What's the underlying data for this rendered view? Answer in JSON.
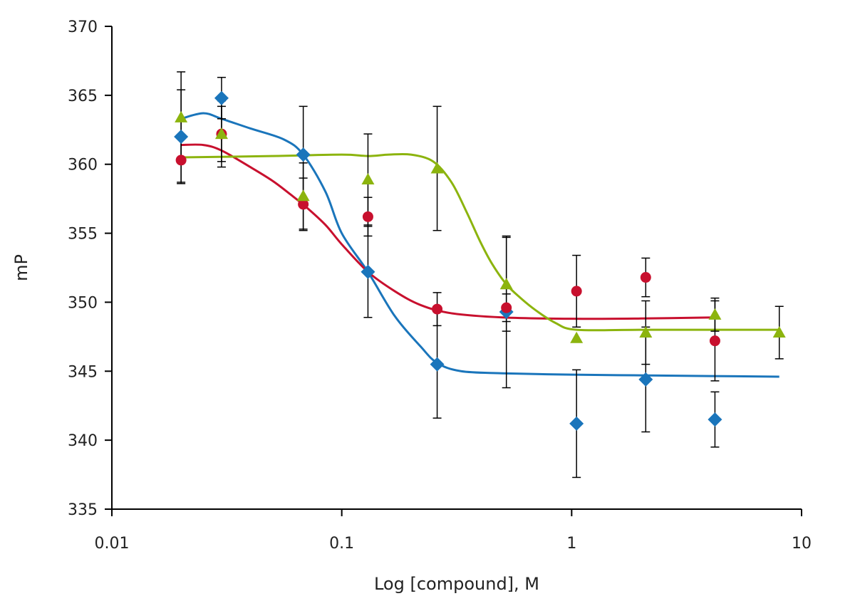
{
  "chart_data": {
    "type": "scatter",
    "title": "",
    "xlabel": "Log [compound], M",
    "ylabel": "mP",
    "xscale": "log",
    "xlim": [
      0.01,
      10
    ],
    "ylim": [
      335,
      370
    ],
    "xticks": [
      0.01,
      0.1,
      1,
      10
    ],
    "xtick_labels": [
      "0.01",
      "0.1",
      "1",
      "10"
    ],
    "yticks": [
      335,
      340,
      345,
      350,
      355,
      360,
      365,
      370
    ],
    "ytick_labels": [
      "335",
      "340",
      "345",
      "350",
      "355",
      "360",
      "365",
      "370"
    ],
    "grid": false,
    "legend": "none",
    "series": [
      {
        "marker": "diamond",
        "color": "#1a75bb",
        "points": [
          {
            "x": 0.02,
            "y": 362.0,
            "err": 3.4
          },
          {
            "x": 0.03,
            "y": 364.8,
            "err": 1.5
          },
          {
            "x": 0.068,
            "y": 360.7,
            "err": 3.5
          },
          {
            "x": 0.13,
            "y": 352.2,
            "err": 3.3
          },
          {
            "x": 0.26,
            "y": 345.5,
            "err": 3.9
          },
          {
            "x": 0.52,
            "y": 349.3,
            "err": 5.5
          },
          {
            "x": 1.05,
            "y": 341.2,
            "err": 3.9
          },
          {
            "x": 2.1,
            "y": 344.4,
            "err": 3.8
          },
          {
            "x": 4.2,
            "y": 341.5,
            "err": 2.0
          }
        ],
        "fit": [
          [
            0.02,
            363.3
          ],
          [
            0.025,
            363.7
          ],
          [
            0.03,
            363.3
          ],
          [
            0.04,
            362.6
          ],
          [
            0.056,
            361.8
          ],
          [
            0.068,
            360.7
          ],
          [
            0.085,
            358.0
          ],
          [
            0.1,
            355.0
          ],
          [
            0.13,
            352.2
          ],
          [
            0.17,
            349.0
          ],
          [
            0.22,
            346.8
          ],
          [
            0.26,
            345.6
          ],
          [
            0.33,
            345.0
          ],
          [
            0.5,
            344.85
          ],
          [
            1,
            344.75
          ],
          [
            2,
            344.7
          ],
          [
            4,
            344.65
          ],
          [
            8,
            344.6
          ]
        ]
      },
      {
        "marker": "circle",
        "color": "#c8102e",
        "points": [
          {
            "x": 0.02,
            "y": 360.3,
            "err": 1.6
          },
          {
            "x": 0.03,
            "y": 362.2,
            "err": 2.4
          },
          {
            "x": 0.068,
            "y": 357.1,
            "err": 1.9
          },
          {
            "x": 0.13,
            "y": 356.2,
            "err": 1.4
          },
          {
            "x": 0.26,
            "y": 349.5,
            "err": 1.2
          },
          {
            "x": 0.52,
            "y": 349.6,
            "err": 1.0
          },
          {
            "x": 1.05,
            "y": 350.8,
            "err": 2.6
          },
          {
            "x": 2.1,
            "y": 351.8,
            "err": 1.4
          },
          {
            "x": 4.2,
            "y": 347.2,
            "err": 2.9
          }
        ],
        "fit": [
          [
            0.02,
            361.4
          ],
          [
            0.025,
            361.4
          ],
          [
            0.03,
            361.0
          ],
          [
            0.04,
            359.8
          ],
          [
            0.05,
            358.8
          ],
          [
            0.06,
            357.8
          ],
          [
            0.07,
            356.9
          ],
          [
            0.085,
            355.6
          ],
          [
            0.1,
            354.2
          ],
          [
            0.13,
            352.2
          ],
          [
            0.17,
            350.8
          ],
          [
            0.22,
            349.8
          ],
          [
            0.3,
            349.2
          ],
          [
            0.5,
            348.9
          ],
          [
            1,
            348.8
          ],
          [
            2,
            348.82
          ],
          [
            4.2,
            348.9
          ]
        ]
      },
      {
        "marker": "triangle",
        "color": "#8cb40e",
        "points": [
          {
            "x": 0.02,
            "y": 363.4,
            "err": 3.3
          },
          {
            "x": 0.03,
            "y": 362.2,
            "err": 2.0
          },
          {
            "x": 0.068,
            "y": 357.7,
            "err": 2.4
          },
          {
            "x": 0.13,
            "y": 358.9,
            "err": 3.3
          },
          {
            "x": 0.26,
            "y": 359.7,
            "err": 4.5
          },
          {
            "x": 0.52,
            "y": 351.3,
            "err": 3.4
          },
          {
            "x": 1.05,
            "y": 347.4,
            "err": 0
          },
          {
            "x": 2.1,
            "y": 347.8,
            "err": 2.3
          },
          {
            "x": 4.2,
            "y": 349.1,
            "err": 1.2
          },
          {
            "x": 8.0,
            "y": 347.8,
            "err": 1.9
          }
        ],
        "fit": [
          [
            0.02,
            360.5
          ],
          [
            0.05,
            360.6
          ],
          [
            0.1,
            360.7
          ],
          [
            0.13,
            360.6
          ],
          [
            0.16,
            360.7
          ],
          [
            0.2,
            360.7
          ],
          [
            0.25,
            360.2
          ],
          [
            0.3,
            358.7
          ],
          [
            0.35,
            356.5
          ],
          [
            0.4,
            354.4
          ],
          [
            0.45,
            352.8
          ],
          [
            0.52,
            351.3
          ],
          [
            0.6,
            350.3
          ],
          [
            0.7,
            349.4
          ],
          [
            0.85,
            348.5
          ],
          [
            1.05,
            348.0
          ],
          [
            2,
            348.0
          ],
          [
            8,
            348.0
          ]
        ]
      }
    ]
  }
}
